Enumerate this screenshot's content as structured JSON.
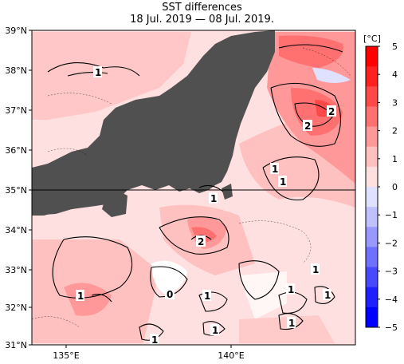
{
  "title": "SST differences",
  "subtitle": "18 Jul. 2019 — 08 Jul. 2019.",
  "lat_labels": [
    "39°N",
    "38°N",
    "37°N",
    "36°N",
    "35°N",
    "34°N",
    "33°N",
    "32°N",
    "31°N"
  ],
  "lon_labels": [
    "135°E",
    "140°E"
  ],
  "colorbar": {
    "unit": "[°C]",
    "ticks": [
      "5",
      "4",
      "3",
      "2",
      "1",
      "0",
      "−1",
      "−2",
      "−3",
      "−4",
      "−5"
    ],
    "colors_top_to_bottom": [
      "#ff0000",
      "#ff2020",
      "#ff4848",
      "#ff7070",
      "#ff9898",
      "#ffc0c0",
      "#ffe0e0",
      "#e0e0ff",
      "#c0c0ff",
      "#9898ff",
      "#7070ff",
      "#4848ff",
      "#2020ff",
      "#0000ff"
    ]
  },
  "land_color": "#505050",
  "contour_labels": [
    "1",
    "2",
    "2",
    "1",
    "1",
    "1",
    "2",
    "1",
    "0",
    "1",
    "1",
    "1",
    "1",
    "1",
    "1",
    "1"
  ]
}
